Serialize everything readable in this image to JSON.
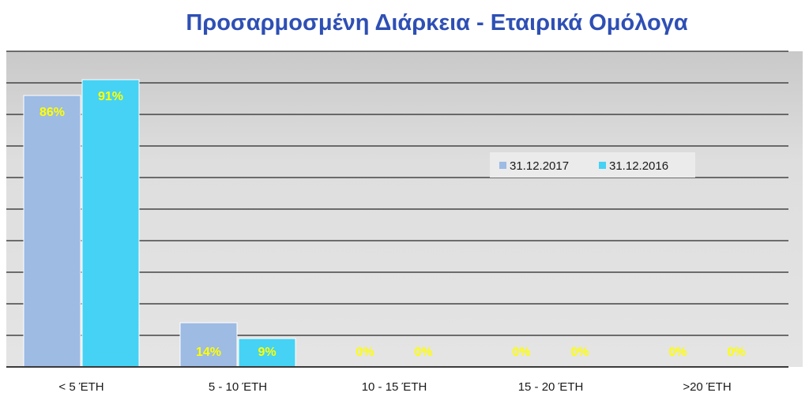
{
  "chart_data": {
    "type": "bar",
    "title": "Προσαρμοσμένη Διάρκεια - Εταιρικά Ομόλογα",
    "xlabel": "",
    "ylabel": "",
    "categories": [
      "< 5 ΈΤΗ",
      "5 - 10 ΈΤΗ",
      "10 - 15 ΈΤΗ",
      "15 - 20 ΈΤΗ",
      ">20 ΈΤΗ"
    ],
    "series": [
      {
        "name": "31.12.2017",
        "values": [
          86,
          14,
          0,
          0,
          0
        ],
        "labels": [
          "86%",
          "14%",
          "0%",
          "0%",
          "0%"
        ],
        "color": "#9dbbe3"
      },
      {
        "name": "31.12.2016",
        "values": [
          91,
          9,
          0,
          0,
          0
        ],
        "labels": [
          "91%",
          "9%",
          "0%",
          "0%",
          "0%"
        ],
        "color": "#45d2f5"
      }
    ],
    "ylim": [
      0,
      100
    ],
    "grid": true,
    "legend": "top-right",
    "colors": {
      "title": "#2e4fb4",
      "plot_background": "#d6d6d6",
      "gridline": "#454545",
      "data_label": "#ffff00"
    }
  }
}
